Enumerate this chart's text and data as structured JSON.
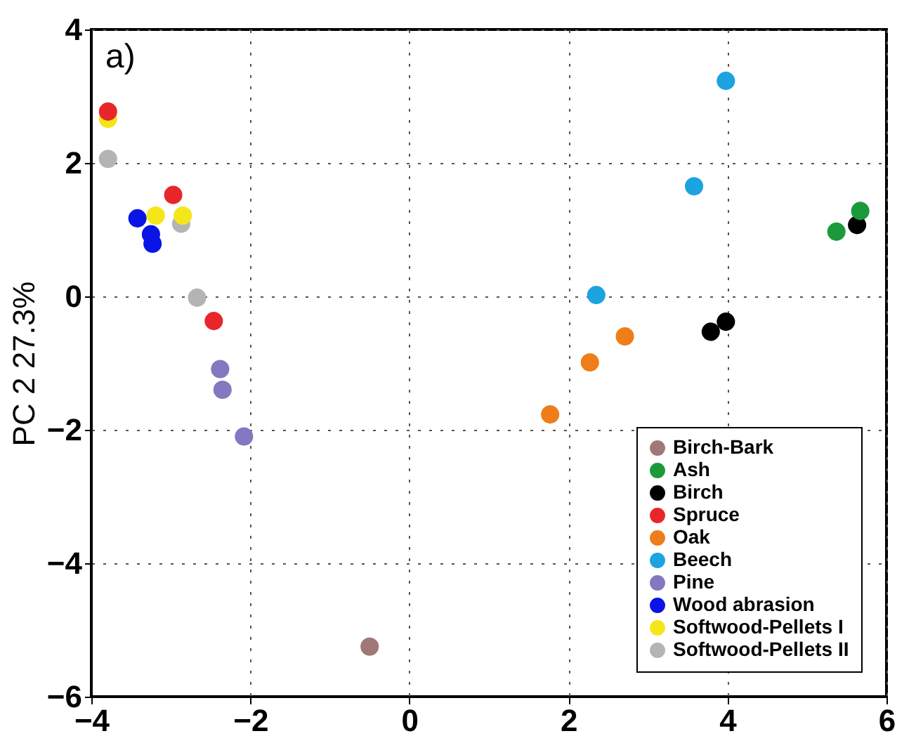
{
  "chart_data": {
    "type": "scatter",
    "ylabel": "PC 2 27.3%",
    "annotations": [
      "a)"
    ],
    "xlim": [
      -4,
      6
    ],
    "ylim": [
      -6,
      4
    ],
    "xticks": [
      -4,
      -2,
      0,
      2,
      4,
      6
    ],
    "yticks": [
      -6,
      -4,
      -2,
      0,
      2,
      4
    ],
    "grid": true,
    "legend": "bottom right",
    "marker": "circle",
    "series": [
      {
        "name": "Birch-Bark",
        "color": "#a07878",
        "x": [
          -0.5
        ],
        "values": [
          -5.25
        ]
      },
      {
        "name": "Ash",
        "color": "#1a9a3a",
        "x": [
          5.67,
          5.37
        ],
        "values": [
          1.28,
          0.97
        ]
      },
      {
        "name": "Birch",
        "color": "#000000",
        "x": [
          3.79,
          3.98,
          5.63
        ],
        "values": [
          -0.53,
          -0.38,
          1.07
        ]
      },
      {
        "name": "Spruce",
        "color": "#e8262a",
        "x": [
          -3.79,
          -2.97,
          -2.46
        ],
        "values": [
          2.77,
          1.52,
          -0.37
        ]
      },
      {
        "name": "Oak",
        "color": "#ef7d1a",
        "x": [
          2.71,
          2.27,
          1.77
        ],
        "values": [
          -0.6,
          -0.99,
          -1.77
        ]
      },
      {
        "name": "Beech",
        "color": "#1ca3e0",
        "x": [
          3.98,
          3.58,
          2.35
        ],
        "values": [
          3.23,
          1.65,
          0.02
        ]
      },
      {
        "name": "Pine",
        "color": "#8478c0",
        "x": [
          -2.38,
          -2.35,
          -2.08
        ],
        "values": [
          -1.09,
          -1.4,
          -2.1
        ]
      },
      {
        "name": "Wood abrasion",
        "color": "#0a14e6",
        "x": [
          -3.42,
          -3.25,
          -3.23
        ],
        "values": [
          1.17,
          0.93,
          0.79
        ]
      },
      {
        "name": "Softwood-Pellets I",
        "color": "#f5e61a",
        "x": [
          -3.79,
          -3.19,
          -2.85
        ],
        "values": [
          2.66,
          1.21,
          1.21
        ]
      },
      {
        "name": "Softwood-Pellets II",
        "color": "#b4b4b4",
        "x": [
          -3.79,
          -2.87,
          -2.67
        ],
        "values": [
          2.06,
          1.09,
          -0.02
        ]
      }
    ]
  }
}
